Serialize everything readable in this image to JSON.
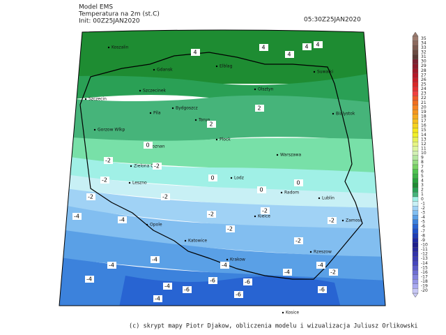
{
  "header": {
    "model": "Model EMS",
    "variable": "Temperatura na 2m (st.C)",
    "init": "Init: 00Z25JAN2020",
    "valid": "05:30Z25JAN2020"
  },
  "colorbar": {
    "labels": [
      35,
      34,
      33,
      32,
      31,
      30,
      29,
      28,
      27,
      26,
      25,
      24,
      23,
      22,
      21,
      20,
      19,
      18,
      17,
      16,
      15,
      14,
      13,
      12,
      11,
      10,
      9,
      8,
      7,
      6,
      5,
      4,
      3,
      2,
      1,
      0,
      -1,
      -2,
      -3,
      -4,
      -5,
      -6,
      -7,
      -8,
      -9,
      -10,
      -11,
      -12,
      -13,
      -14,
      -15,
      -16,
      -17,
      -18,
      -19,
      -20
    ],
    "colors": [
      "#9c7b6e",
      "#8c6a5e",
      "#7c5a50",
      "#6b4b42",
      "#5a3a34",
      "#7a2030",
      "#8b1a2a",
      "#a01828",
      "#b51828",
      "#c81e28",
      "#d82828",
      "#e63232",
      "#f04040",
      "#f05a28",
      "#f06e1e",
      "#f58220",
      "#f5961e",
      "#f5aa1e",
      "#f5be1e",
      "#f5d21e",
      "#f5e61e",
      "#f0f028",
      "#e6f05a",
      "#e6f582",
      "#dcf5a0",
      "#d2f0b4",
      "#b4e6a0",
      "#96dc82",
      "#78d264",
      "#50c350",
      "#3cb446",
      "#28a03c",
      "#1e8c32",
      "#2aa055",
      "#46b47a",
      "#a0f0e6",
      "#c8f0f5",
      "#a0d2f5",
      "#82bef0",
      "#5aa0e6",
      "#3c82dc",
      "#2864d2",
      "#1e50c8",
      "#1e3cb4",
      "#1e28a0",
      "#1e1e8c",
      "#28289a",
      "#3232aa",
      "#3c3cb4",
      "#4646be",
      "#5a5ac8",
      "#6e6ed2",
      "#8282dc",
      "#9696e6",
      "#aaaaf0",
      "#c8c8f5"
    ]
  },
  "cities": [
    "Koszalin",
    "Gdansk",
    "Elblag",
    "Suwalki",
    "Szczecin",
    "Szczecinek",
    "Olsztyn",
    "Pila",
    "Bydgoszcz",
    "Torun",
    "Bialystok",
    "Gorzow Wlkp",
    "Poznan",
    "Plock",
    "Warszawa",
    "Zielona Gora",
    "Leszno",
    "Lodz",
    "Radom",
    "Lublin",
    "Opole",
    "Kielce",
    "Zamosc",
    "Katowice",
    "Rzeszow",
    "Krakow",
    "Kosice"
  ],
  "contour_labels": [
    4,
    4,
    4,
    4,
    4,
    2,
    2,
    0,
    0,
    0,
    0,
    -2,
    -2,
    -2,
    -2,
    -2,
    -2,
    -2,
    -2,
    -2,
    -2,
    -2,
    -4,
    -4,
    -4,
    -4,
    -4,
    -4,
    -4,
    -4,
    -4,
    -4,
    -6,
    -6,
    -6,
    -6,
    -6
  ],
  "footer": "(c) skrypt mapy Piotr Djakow, obliczenia modelu i wizualizacja Juliusz Orlikowski"
}
